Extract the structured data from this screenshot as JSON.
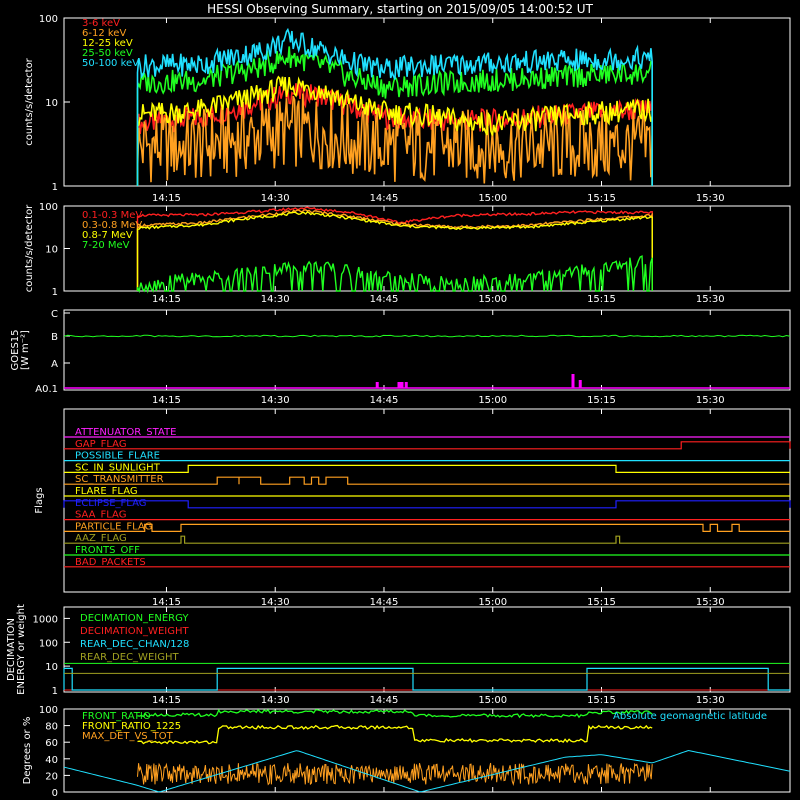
{
  "title": "HESSI Observing Summary, starting on 2015/09/05 14:00:52 UT",
  "time_ticks": [
    "14:15",
    "14:30",
    "14:45",
    "15:00",
    "15:15",
    "15:30"
  ],
  "chart_data": [
    {
      "type": "line",
      "panel": "low_energy",
      "ylabel": "counts/s/detector",
      "y_scale": "log",
      "ylim": [
        1,
        100
      ],
      "y_ticks": [
        "100",
        "10",
        "1"
      ],
      "x_range": [
        "14:00:52",
        "15:41"
      ],
      "data_start": "14:11",
      "data_end": "15:22",
      "x": [
        "14:11",
        "14:20",
        "14:28",
        "14:32",
        "14:36",
        "14:40",
        "14:45",
        "14:50",
        "14:55",
        "15:00",
        "15:05",
        "15:10",
        "15:15",
        "15:20",
        "15:22"
      ],
      "series": [
        {
          "name": "3-6 keV",
          "color": "#ff2020",
          "values": [
            5.5,
            6.5,
            10,
            13,
            12,
            9,
            6.5,
            6,
            6,
            6,
            6.5,
            7,
            7.5,
            8,
            8
          ]
        },
        {
          "name": "6-12 keV",
          "color": "#ffa020",
          "values": [
            3,
            3,
            4,
            4.5,
            4.5,
            3.5,
            3,
            3,
            3,
            3,
            3,
            3,
            3,
            3,
            3
          ]
        },
        {
          "name": "12-25 keV",
          "color": "#ffff00",
          "values": [
            7,
            8,
            12,
            16,
            14,
            10,
            7.5,
            7,
            6,
            5.5,
            6,
            7,
            7.5,
            8,
            8
          ]
        },
        {
          "name": "25-50 keV",
          "color": "#20ff20",
          "values": [
            17,
            18,
            26,
            35,
            28,
            20,
            15,
            16,
            17,
            18,
            19,
            20,
            21,
            22,
            22
          ]
        },
        {
          "name": "50-100 keV",
          "color": "#20e0ff",
          "values": [
            27,
            28,
            40,
            55,
            42,
            30,
            24,
            27,
            28,
            29,
            30,
            31,
            32,
            33,
            33
          ]
        }
      ]
    },
    {
      "type": "line",
      "panel": "high_energy",
      "ylabel": "counts/s/detector",
      "y_scale": "log",
      "ylim": [
        1,
        100
      ],
      "y_ticks": [
        "100",
        "10",
        "1"
      ],
      "x": [
        "14:11",
        "14:20",
        "14:28",
        "14:34",
        "14:40",
        "14:47",
        "14:55",
        "15:05",
        "15:12",
        "15:22"
      ],
      "series": [
        {
          "name": "0.1-0.3 MeV",
          "color": "#ff2020",
          "values": [
            60,
            62,
            75,
            90,
            72,
            40,
            60,
            65,
            72,
            70
          ]
        },
        {
          "name": "0.3-0.8 MeV",
          "color": "#ffa020",
          "values": [
            35,
            40,
            60,
            78,
            58,
            38,
            32,
            35,
            45,
            60
          ]
        },
        {
          "name": "0.8-7 MeV",
          "color": "#ffff00",
          "values": [
            30,
            36,
            55,
            70,
            52,
            34,
            30,
            32,
            40,
            55
          ]
        },
        {
          "name": "7-20 MeV",
          "color": "#20ff20",
          "values": [
            1.5,
            2,
            3,
            4,
            3,
            2,
            1.5,
            2,
            3,
            5
          ]
        }
      ]
    },
    {
      "type": "line",
      "panel": "goes",
      "ylabel": "GOES15",
      "ylabel2": "[W m⁻²]",
      "y_ticks": [
        "C",
        "B",
        "A",
        "A0.1"
      ],
      "series": [
        {
          "name": "GOES 1-8 A",
          "color": "#20ff20",
          "level": "B"
        },
        {
          "name": "GOES 0.5-4 A",
          "color": "#ff00ff",
          "level": "A0.1",
          "spikes": [
            "14:44",
            "14:47",
            "14:48",
            "15:11",
            "15:12"
          ]
        }
      ]
    },
    {
      "type": "table",
      "panel": "flags",
      "ylabel": "Flags",
      "rows": [
        {
          "name": "ATTENUATOR_STATE",
          "color": "#ff20ff",
          "segments": []
        },
        {
          "name": "GAP_FLAG",
          "color": "#ff2020",
          "segments": [
            [
              "15:26",
              "15:41"
            ]
          ]
        },
        {
          "name": "POSSIBLE_FLARE",
          "color": "#20e0ff",
          "segments": []
        },
        {
          "name": "SC_IN_SUNLIGHT",
          "color": "#ffff00",
          "segments": [
            [
              "14:18",
              "15:17"
            ]
          ]
        },
        {
          "name": "SC_TRANSMITTER",
          "color": "#ffa020",
          "segments": [
            [
              "14:22",
              "14:25"
            ],
            [
              "14:25",
              "14:28"
            ],
            [
              "14:32",
              "14:34"
            ],
            [
              "14:35",
              "14:36"
            ],
            [
              "14:37",
              "14:40"
            ]
          ]
        },
        {
          "name": "FLARE_FLAG",
          "color": "#ffff00",
          "segments": []
        },
        {
          "name": "ECLIPSE_FLAG",
          "color": "#2020ff",
          "segments": [
            [
              "14:00:52",
              "14:18"
            ],
            [
              "15:17",
              "15:41"
            ]
          ]
        },
        {
          "name": "SAA_FLAG",
          "color": "#ff2020",
          "segments": []
        },
        {
          "name": "PARTICLE_FLAG",
          "color": "#ffa020",
          "segments": [
            [
              "14:12",
              "14:13"
            ],
            [
              "14:17",
              "15:29"
            ],
            [
              "15:30",
              "15:31"
            ],
            [
              "15:33",
              "15:34"
            ]
          ]
        },
        {
          "name": "AAZ_FLAG",
          "color": "#a0a020",
          "segments": [
            [
              "14:17",
              "14:17:30"
            ],
            [
              "15:17",
              "15:17:30"
            ]
          ]
        },
        {
          "name": "FRONTS_OFF",
          "color": "#20ff20",
          "segments": []
        },
        {
          "name": "BAD_PACKETS",
          "color": "#ff2020",
          "segments": []
        }
      ]
    },
    {
      "type": "line",
      "panel": "decimation",
      "ylabel": "DECIMATION",
      "ylabel2": "ENERGY or weight",
      "y_scale": "log",
      "ylim": [
        1,
        3000
      ],
      "y_ticks": [
        "1000",
        "100",
        "10",
        "1"
      ],
      "series": [
        {
          "name": "DECIMATION_ENERGY",
          "color": "#20ff20",
          "value": 13
        },
        {
          "name": "DECIMATION_WEIGHT",
          "color": "#ff2020",
          "value": 1
        },
        {
          "name": "REAR_DEC_CHAN/128",
          "color": "#20e0ff",
          "high": 8,
          "low": 1,
          "high_segments": [
            [
              "14:00:52",
              "14:02"
            ],
            [
              "14:22",
              "14:49"
            ],
            [
              "15:13",
              "15:38"
            ]
          ]
        },
        {
          "name": "REAR_DEC_WEIGHT",
          "color": "#a0a020",
          "value": 5
        }
      ]
    },
    {
      "type": "line",
      "panel": "ratios",
      "ylabel": "Degrees or %",
      "ylim": [
        0,
        100
      ],
      "y_ticks": [
        "100",
        "80",
        "60",
        "40",
        "20",
        "0"
      ],
      "series": [
        {
          "name": "FRONT_RATIO",
          "color": "#20ff20",
          "values_segments": [
            [
              [
                "14:11",
                93
              ],
              [
                "14:22",
                97
              ],
              [
                "14:49",
                92
              ],
              [
                "15:13",
                96
              ],
              [
                "15:22",
                95
              ]
            ]
          ]
        },
        {
          "name": "FRONT_RATIO_1225",
          "color": "#ffff00",
          "values_segments": [
            [
              [
                "14:11",
                60
              ],
              [
                "14:22",
                78
              ],
              [
                "14:49",
                62
              ],
              [
                "15:13",
                78
              ],
              [
                "15:22",
                78
              ]
            ]
          ]
        },
        {
          "name": "MAX_DET_VS_TOT",
          "color": "#ffa020",
          "mean": 22,
          "spread": 10
        },
        {
          "name": "Absolute geomagnetic latitude",
          "color": "#20e0ff",
          "points": [
            [
              "14:00:52",
              30
            ],
            [
              "14:11",
              8
            ],
            [
              "14:14",
              0
            ],
            [
              "14:33",
              50
            ],
            [
              "14:50",
              0
            ],
            [
              "15:10",
              42
            ],
            [
              "15:15",
              45
            ],
            [
              "15:22",
              35
            ],
            [
              "15:27",
              50
            ],
            [
              "15:41",
              25
            ]
          ]
        }
      ]
    }
  ]
}
